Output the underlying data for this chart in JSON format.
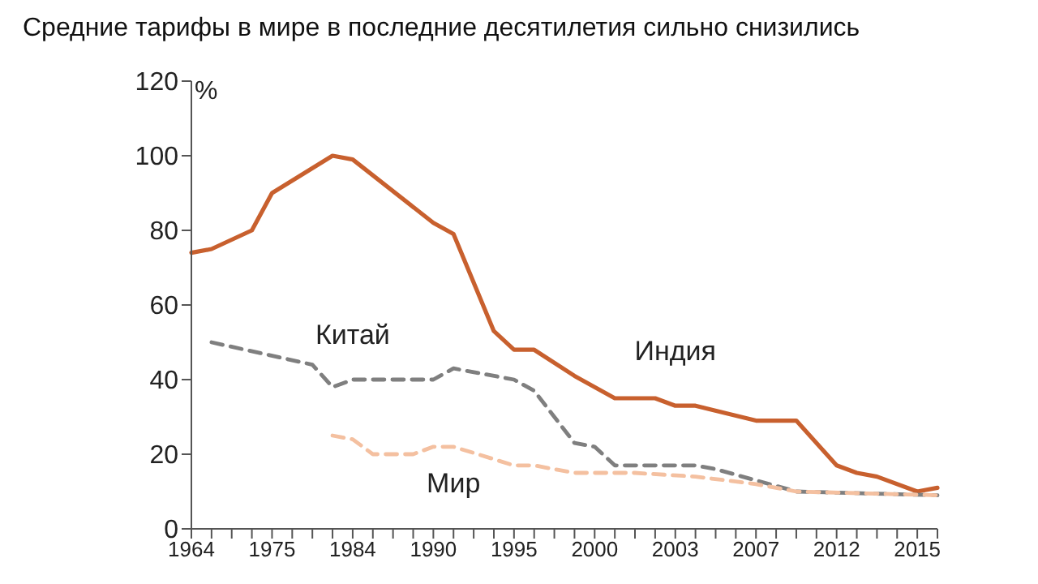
{
  "chart_data": {
    "type": "line",
    "title": "Средние тарифы в мире в последние десятилетия сильно снизились",
    "ylabel": "%",
    "categories": [
      "1964",
      null,
      null,
      null,
      "1975",
      null,
      null,
      null,
      "1984",
      null,
      null,
      null,
      "1990",
      null,
      null,
      null,
      "1995",
      null,
      null,
      null,
      "2000",
      null,
      null,
      null,
      "2003",
      null,
      null,
      null,
      "2007",
      null,
      null,
      null,
      "2012",
      null,
      null,
      null,
      "2015",
      null
    ],
    "series": [
      {
        "name": "Индия",
        "color": "#c8602e",
        "line_style": "solid",
        "values": [
          74,
          75,
          null,
          80,
          90,
          null,
          null,
          100,
          99,
          null,
          null,
          null,
          82,
          79,
          null,
          53,
          48,
          48,
          null,
          41,
          null,
          35,
          null,
          35,
          33,
          33,
          null,
          null,
          29,
          null,
          29,
          null,
          17,
          15,
          14,
          null,
          10,
          11
        ]
      },
      {
        "name": "Китай",
        "color": "#7f7f7f",
        "line_style": "dashed",
        "values": [
          null,
          50,
          null,
          null,
          null,
          null,
          44,
          38,
          40,
          null,
          null,
          null,
          40,
          43,
          null,
          null,
          40,
          37,
          null,
          23,
          22,
          17,
          null,
          null,
          null,
          17,
          16,
          null,
          13,
          null,
          10,
          null,
          null,
          null,
          null,
          null,
          null,
          9
        ]
      },
      {
        "name": "Мир",
        "color": "#f4c0a0",
        "line_style": "dashed",
        "values": [
          null,
          null,
          null,
          null,
          null,
          null,
          null,
          25,
          24,
          20,
          null,
          20,
          22,
          22,
          null,
          null,
          17,
          17,
          null,
          15,
          null,
          null,
          15,
          null,
          null,
          14,
          null,
          null,
          12,
          null,
          10,
          null,
          null,
          null,
          null,
          null,
          null,
          9
        ]
      }
    ],
    "ylim": [
      0,
      120
    ],
    "yticks": [
      0,
      20,
      40,
      60,
      80,
      100,
      120
    ],
    "grid": false,
    "legend": false
  }
}
